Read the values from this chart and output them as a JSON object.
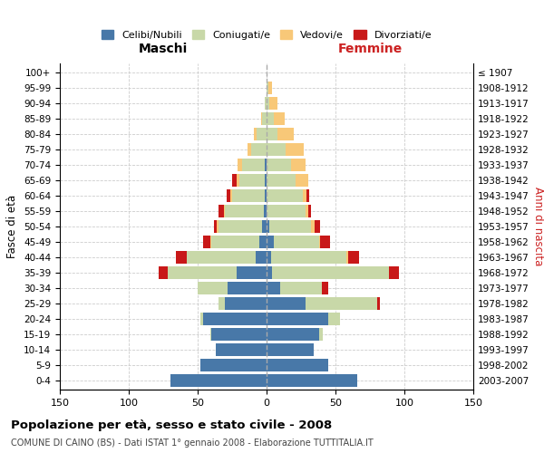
{
  "age_groups": [
    "0-4",
    "5-9",
    "10-14",
    "15-19",
    "20-24",
    "25-29",
    "30-34",
    "35-39",
    "40-44",
    "45-49",
    "50-54",
    "55-59",
    "60-64",
    "65-69",
    "70-74",
    "75-79",
    "80-84",
    "85-89",
    "90-94",
    "95-99",
    "100+"
  ],
  "birth_years": [
    "2003-2007",
    "1998-2002",
    "1993-1997",
    "1988-1992",
    "1983-1987",
    "1978-1982",
    "1973-1977",
    "1968-1972",
    "1963-1967",
    "1958-1962",
    "1953-1957",
    "1948-1952",
    "1943-1947",
    "1938-1942",
    "1933-1937",
    "1928-1932",
    "1923-1927",
    "1918-1922",
    "1913-1917",
    "1908-1912",
    "≤ 1907"
  ],
  "males": {
    "celibi": [
      70,
      48,
      37,
      40,
      46,
      30,
      28,
      22,
      8,
      5,
      3,
      2,
      1,
      1,
      1,
      0,
      0,
      0,
      0,
      0,
      0
    ],
    "coniugati": [
      0,
      0,
      0,
      1,
      2,
      5,
      22,
      50,
      50,
      35,
      32,
      28,
      24,
      19,
      17,
      11,
      7,
      3,
      1,
      0,
      0
    ],
    "vedovi": [
      0,
      0,
      0,
      0,
      0,
      0,
      0,
      0,
      0,
      1,
      1,
      1,
      1,
      2,
      3,
      3,
      2,
      1,
      0,
      0,
      0
    ],
    "divorziati": [
      0,
      0,
      0,
      0,
      0,
      0,
      0,
      6,
      8,
      5,
      2,
      4,
      3,
      3,
      0,
      0,
      0,
      0,
      0,
      0,
      0
    ]
  },
  "females": {
    "nubili": [
      66,
      45,
      34,
      38,
      45,
      28,
      10,
      4,
      3,
      5,
      2,
      0,
      0,
      0,
      0,
      0,
      0,
      0,
      0,
      0,
      0
    ],
    "coniugate": [
      0,
      0,
      0,
      3,
      8,
      52,
      30,
      85,
      55,
      33,
      30,
      28,
      26,
      21,
      18,
      14,
      8,
      5,
      2,
      1,
      0
    ],
    "vedove": [
      0,
      0,
      0,
      0,
      0,
      0,
      0,
      0,
      1,
      1,
      3,
      2,
      3,
      9,
      10,
      13,
      12,
      8,
      6,
      3,
      0
    ],
    "divorziate": [
      0,
      0,
      0,
      0,
      0,
      2,
      5,
      7,
      8,
      7,
      4,
      2,
      2,
      0,
      0,
      0,
      0,
      0,
      0,
      0,
      0
    ]
  },
  "color_celibi": "#4878a8",
  "color_coniugati": "#c8d8a8",
  "color_vedovi": "#f8c878",
  "color_divorziati": "#c81818",
  "xlim": 150,
  "title": "Popolazione per età, sesso e stato civile - 2008",
  "subtitle": "COMUNE DI CAINO (BS) - Dati ISTAT 1° gennaio 2008 - Elaborazione TUTTITALIA.IT",
  "ylabel_left": "Fasce di età",
  "ylabel_right": "Anni di nascita",
  "xlabel_maschi": "Maschi",
  "xlabel_femmine": "Femmine"
}
